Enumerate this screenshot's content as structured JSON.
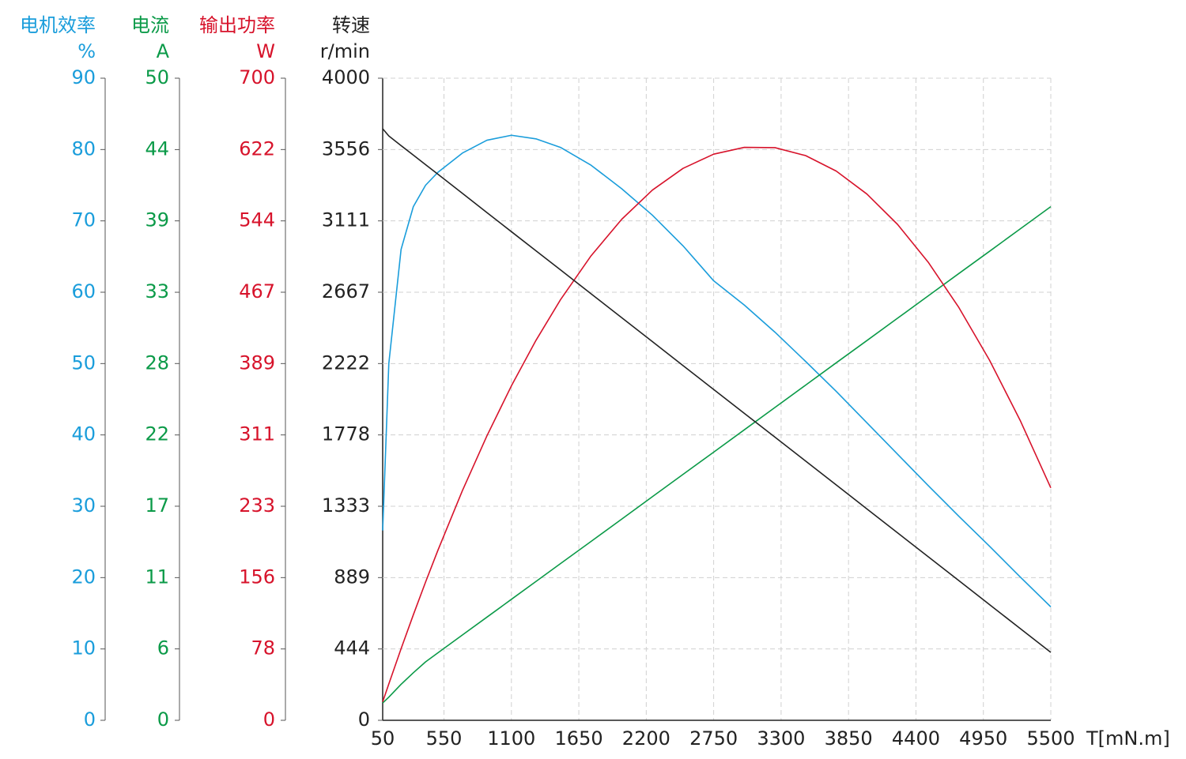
{
  "chart_data": {
    "type": "line",
    "x_label": "T[mN.m]",
    "xlim": [
      50,
      5500
    ],
    "xticks": [
      50,
      550,
      1100,
      1650,
      2200,
      2750,
      3300,
      3850,
      4400,
      4950,
      5500
    ],
    "grid": true,
    "y_axes": [
      {
        "title": "电机效率",
        "unit": "%",
        "color": "#1a9ddb",
        "lim": [
          0,
          90
        ],
        "ticks": [
          0,
          10,
          20,
          30,
          40,
          50,
          60,
          70,
          80,
          90
        ]
      },
      {
        "title": "电流",
        "unit": "A",
        "color": "#0b9a48",
        "lim": [
          0,
          50
        ],
        "ticks": [
          0,
          {
            "value": 5.56,
            "label": "6"
          },
          {
            "value": 11.11,
            "label": "11"
          },
          {
            "value": 16.67,
            "label": "17"
          },
          {
            "value": 22.22,
            "label": "22"
          },
          {
            "value": 27.78,
            "label": "28"
          },
          {
            "value": 33.33,
            "label": "33"
          },
          {
            "value": 38.89,
            "label": "39"
          },
          {
            "value": 44.44,
            "label": "44"
          },
          50
        ]
      },
      {
        "title": "输出功率",
        "unit": "W",
        "color": "#d7132b",
        "lim": [
          0,
          700
        ],
        "ticks": [
          0,
          {
            "value": 77.78,
            "label": "78"
          },
          {
            "value": 155.56,
            "label": "156"
          },
          {
            "value": 233.33,
            "label": "233"
          },
          {
            "value": 311.11,
            "label": "311"
          },
          {
            "value": 388.89,
            "label": "389"
          },
          {
            "value": 466.67,
            "label": "467"
          },
          {
            "value": 544.44,
            "label": "544"
          },
          {
            "value": 622.22,
            "label": "622"
          },
          700
        ]
      },
      {
        "title": "转速",
        "unit": "r/min",
        "color": "#222222",
        "lim": [
          0,
          4000
        ],
        "ticks": [
          0,
          {
            "value": 444.44,
            "label": "444"
          },
          {
            "value": 888.89,
            "label": "889"
          },
          {
            "value": 1333.33,
            "label": "1333"
          },
          {
            "value": 1777.78,
            "label": "1778"
          },
          {
            "value": 2222.22,
            "label": "2222"
          },
          {
            "value": 2666.67,
            "label": "2667"
          },
          {
            "value": 3111.11,
            "label": "3111"
          },
          {
            "value": 3555.56,
            "label": "3556"
          },
          4000
        ]
      }
    ],
    "x": [
      50,
      100,
      200,
      300,
      400,
      500,
      700,
      900,
      1100,
      1300,
      1500,
      1750,
      2000,
      2250,
      2500,
      2750,
      3000,
      3250,
      3500,
      3750,
      4000,
      4250,
      4500,
      4750,
      5000,
      5250,
      5500
    ],
    "series": [
      {
        "axis": 0,
        "values": [
          26.6,
          50,
          66,
          72,
          75,
          76.8,
          79.5,
          81.3,
          82,
          81.5,
          80.3,
          77.8,
          74.5,
          70.8,
          66.5,
          61.6,
          58.2,
          54.4,
          50.3,
          46.1,
          41.7,
          37.3,
          32.9,
          28.6,
          24.4,
          20.1,
          15.9
        ]
      },
      {
        "axis": 1,
        "values": [
          1.35,
          1.8,
          2.8,
          3.7,
          4.55,
          5.25,
          6.64,
          8.03,
          9.42,
          10.81,
          12.2,
          13.93,
          15.67,
          17.41,
          19.15,
          20.88,
          22.62,
          24.36,
          26.1,
          27.84,
          29.57,
          31.31,
          33.05,
          34.79,
          36.52,
          38.26,
          40.0
        ]
      },
      {
        "axis": 2,
        "values": [
          20.1,
          39.6,
          78.0,
          115.0,
          150.8,
          185.2,
          250.3,
          310.0,
          364.6,
          414.1,
          458.4,
          506.4,
          546.2,
          578.0,
          601.7,
          617.2,
          624.6,
          624.3,
          615.6,
          598.7,
          573.7,
          540.6,
          499.4,
          450.0,
          392.6,
          327.0,
          253.4
        ]
      },
      {
        "axis": 3,
        "values": [
          3685,
          3640,
          3580,
          3521,
          3461,
          3402,
          3283,
          3163,
          3044,
          2925,
          2806,
          2657,
          2508,
          2359,
          2210,
          2061,
          1912,
          1764,
          1615,
          1466,
          1317,
          1168,
          1019,
          870,
          721,
          572,
          423
        ]
      }
    ]
  }
}
